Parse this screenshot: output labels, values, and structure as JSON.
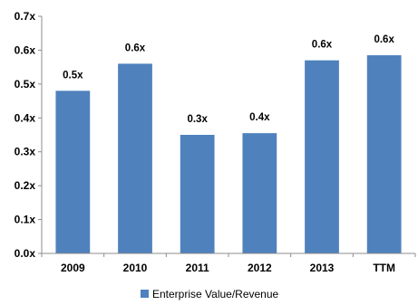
{
  "chart_data": {
    "type": "bar",
    "categories": [
      "2009",
      "2010",
      "2011",
      "2012",
      "2013",
      "TTM"
    ],
    "series": [
      {
        "name": "Enterprise Value/Revenue",
        "values": [
          0.48,
          0.56,
          0.35,
          0.355,
          0.57,
          0.585
        ],
        "data_labels": [
          "0.5x",
          "0.6x",
          "0.3x",
          "0.4x",
          "0.6x",
          "0.6x"
        ],
        "color": "#4f81bd"
      }
    ],
    "ylim": [
      0,
      0.7
    ],
    "yticks": [
      0,
      0.1,
      0.2,
      0.3,
      0.4,
      0.5,
      0.6,
      0.7
    ],
    "ytick_labels": [
      "0.0x",
      "0.1x",
      "0.2x",
      "0.3x",
      "0.4x",
      "0.5x",
      "0.6x",
      "0.7x"
    ],
    "title": "",
    "xlabel": "",
    "ylabel": "",
    "grid": false,
    "legend_position": "bottom-center"
  }
}
